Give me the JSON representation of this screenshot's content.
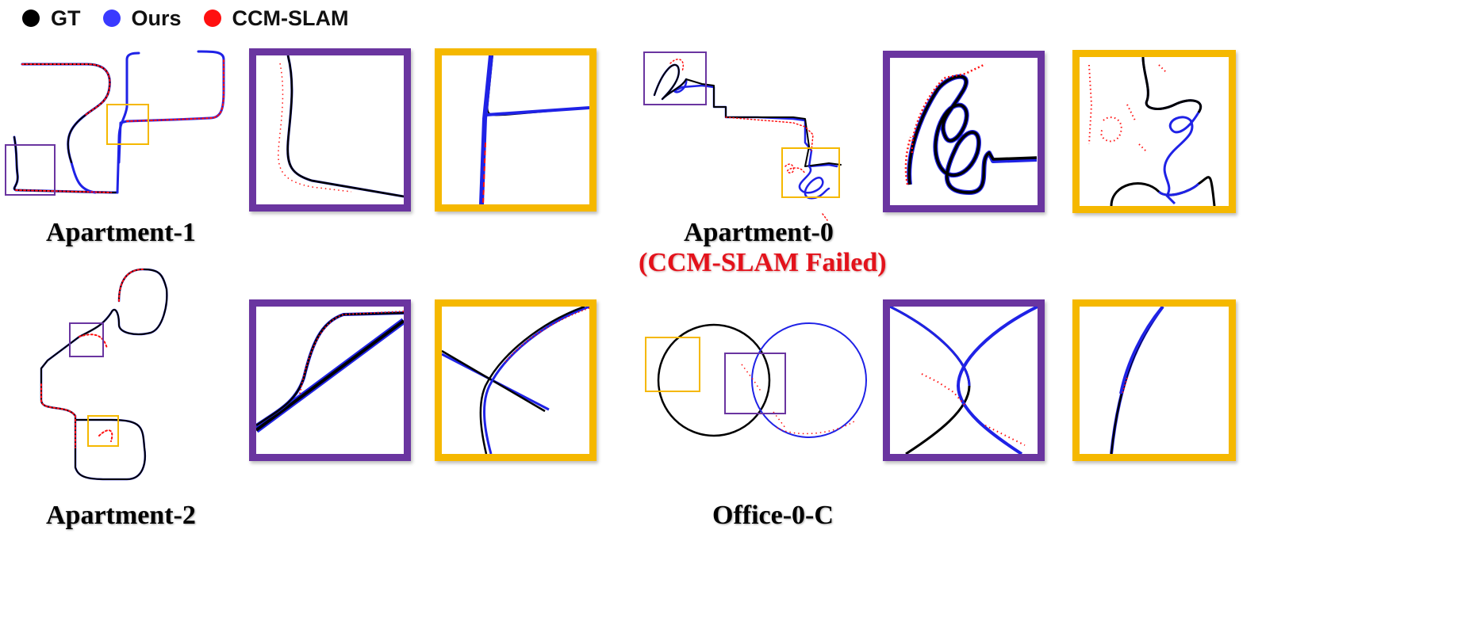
{
  "legend": [
    {
      "label": "GT",
      "color": "#000000"
    },
    {
      "label": "Ours",
      "color": "#3a3aff"
    },
    {
      "label": "CCM-SLAM",
      "color": "#ff1010"
    }
  ],
  "captions": {
    "apartment1": "Apartment-1",
    "apartment0": "Apartment-0",
    "apartment0_note": "(CCM-SLAM Failed)",
    "apartment2": "Apartment-2",
    "office0c": "Office-0-C"
  },
  "colors": {
    "gt": "#000000",
    "ours": "#1f22e6",
    "ccm": "#ff1010",
    "purple_box": "#6a35a0",
    "yellow_box": "#f5b800"
  }
}
